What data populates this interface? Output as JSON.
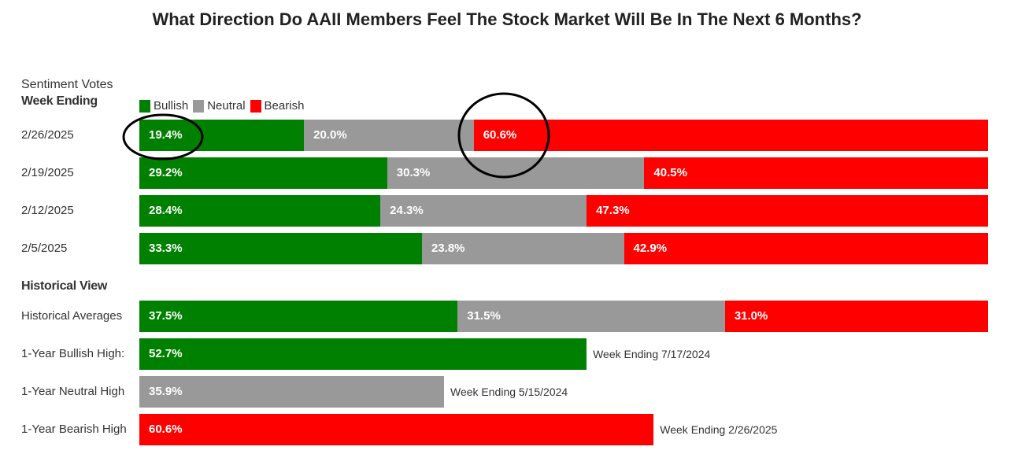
{
  "chart_data": {
    "type": "bar",
    "orientation": "horizontal-stacked",
    "title": "What Direction Do AAII Members Feel The Stock Market Will Be In The Next 6 Months?",
    "legend_title": "Sentiment Votes",
    "legend": [
      "Bullish",
      "Neutral",
      "Bearish"
    ],
    "colors": {
      "Bullish": "#008000",
      "Neutral": "#999999",
      "Bearish": "#ff0000"
    },
    "section_weekly": "Week Ending",
    "section_historical": "Historical View",
    "weekly": [
      {
        "label": "2/26/2025",
        "values": [
          19.4,
          20.0,
          60.6
        ],
        "text": [
          "19.4%",
          "20.0%",
          "60.6%"
        ]
      },
      {
        "label": "2/19/2025",
        "values": [
          29.2,
          30.3,
          40.5
        ],
        "text": [
          "29.2%",
          "30.3%",
          "40.5%"
        ]
      },
      {
        "label": "2/12/2025",
        "values": [
          28.4,
          24.3,
          47.3
        ],
        "text": [
          "28.4%",
          "24.3%",
          "47.3%"
        ]
      },
      {
        "label": "2/5/2025",
        "values": [
          33.3,
          23.8,
          42.9
        ],
        "text": [
          "33.3%",
          "23.8%",
          "42.9%"
        ]
      }
    ],
    "historical": [
      {
        "label": "Historical Averages",
        "values": [
          37.5,
          31.5,
          31.0
        ],
        "text": [
          "37.5%",
          "31.5%",
          "31.0%"
        ]
      },
      {
        "label": "1-Year Bullish High:",
        "series": "Bullish",
        "value": 52.7,
        "text": "52.7%",
        "note": "Week Ending 7/17/2024"
      },
      {
        "label": "1-Year Neutral High",
        "series": "Neutral",
        "value": 35.9,
        "text": "35.9%",
        "note": "Week Ending 5/15/2024"
      },
      {
        "label": "1-Year Bearish High",
        "series": "Bearish",
        "value": 60.6,
        "text": "60.6%",
        "note": "Week Ending 2/26/2025"
      }
    ],
    "xlim": [
      0,
      100
    ],
    "annotations": [
      "circle around 2/26/2025 Bullish 19.4%",
      "circle around 2/26/2025 Bearish 60.6%"
    ]
  }
}
